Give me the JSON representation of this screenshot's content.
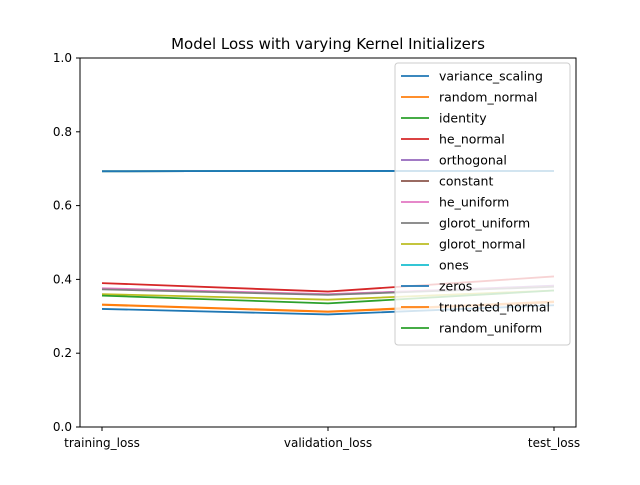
{
  "chart_data": {
    "type": "line",
    "title": "Model Loss with varying Kernel Initializers",
    "xlabel": "",
    "ylabel": "",
    "categories": [
      "training_loss",
      "validation_loss",
      "test_loss"
    ],
    "ylim": [
      0.0,
      1.0
    ],
    "yticks": [
      "0.0",
      "0.2",
      "0.4",
      "0.6",
      "0.8",
      "1.0"
    ],
    "grid": false,
    "legend_position": "top-right",
    "series": [
      {
        "name": "variance_scaling",
        "color": "#1f77b4",
        "values": [
          0.32,
          0.305,
          0.33
        ]
      },
      {
        "name": "random_normal",
        "color": "#ff7f0e",
        "values": [
          0.332,
          0.313,
          0.34
        ]
      },
      {
        "name": "identity",
        "color": "#2ca02c",
        "values": [
          0.693,
          0.694,
          0.694
        ]
      },
      {
        "name": "he_normal",
        "color": "#d62728",
        "values": [
          0.39,
          0.367,
          0.408
        ]
      },
      {
        "name": "orthogonal",
        "color": "#9467bd",
        "values": [
          0.375,
          0.359,
          0.383
        ]
      },
      {
        "name": "constant",
        "color": "#8c564b",
        "values": [
          0.693,
          0.694,
          0.694
        ]
      },
      {
        "name": "he_uniform",
        "color": "#e377c2",
        "values": [
          0.376,
          0.36,
          0.381
        ]
      },
      {
        "name": "glorot_uniform",
        "color": "#7f7f7f",
        "values": [
          0.373,
          0.358,
          0.38
        ]
      },
      {
        "name": "glorot_normal",
        "color": "#bcbd22",
        "values": [
          0.36,
          0.345,
          0.37
        ]
      },
      {
        "name": "ones",
        "color": "#17becf",
        "values": [
          0.693,
          0.694,
          0.694
        ]
      },
      {
        "name": "zeros",
        "color": "#1f77b4",
        "values": [
          0.693,
          0.694,
          0.694
        ]
      },
      {
        "name": "truncated_normal",
        "color": "#ff7f0e",
        "values": [
          0.331,
          0.312,
          0.338
        ]
      },
      {
        "name": "random_uniform",
        "color": "#2ca02c",
        "values": [
          0.356,
          0.335,
          0.37
        ]
      }
    ]
  }
}
